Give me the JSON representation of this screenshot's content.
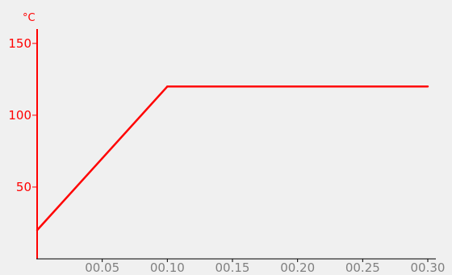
{
  "chart_data": {
    "type": "line",
    "title": "",
    "xlabel": "",
    "ylabel": "°C",
    "xlim": [
      0.0,
      0.3
    ],
    "ylim": [
      0,
      160
    ],
    "grid": false,
    "legend": "none",
    "x_ticks": [
      0.05,
      0.1,
      0.15,
      0.2,
      0.25,
      0.3
    ],
    "x_tick_labels": [
      "00.05",
      "00.10",
      "00.15",
      "00.20",
      "00.25",
      "00.30"
    ],
    "y_ticks": [
      50,
      100,
      150
    ],
    "y_tick_labels": [
      "50",
      "100",
      "150"
    ],
    "series": [
      {
        "x": [
          0.0,
          0.05,
          0.1,
          0.3
        ],
        "y": [
          20,
          70,
          120,
          120
        ]
      }
    ],
    "colors": {
      "line": "#ff0000",
      "axis": "#ff0000",
      "x_tick_labels": "#808080",
      "background": "#f0f0f0"
    }
  }
}
